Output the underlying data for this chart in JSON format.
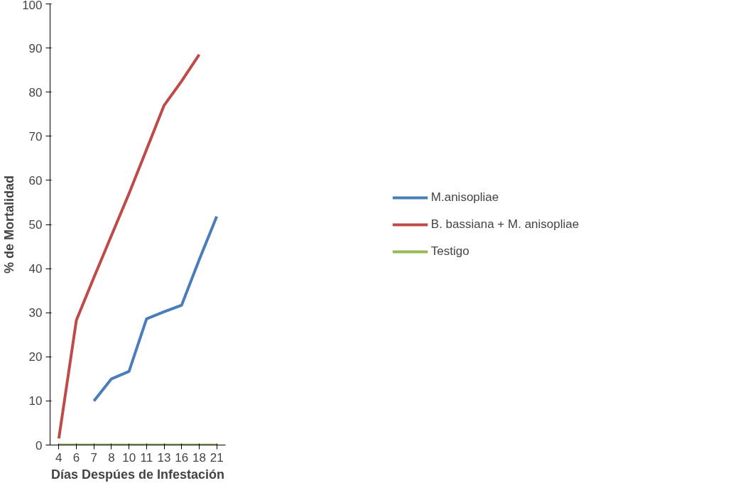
{
  "chart_data": {
    "type": "line",
    "xlabel": "Días Despúes de Infestación",
    "ylabel": "% de Mortalidad",
    "categories": [
      "4",
      "6",
      "7",
      "8",
      "10",
      "11",
      "13",
      "16",
      "18",
      "21"
    ],
    "series": [
      {
        "name": "M.anisopliae",
        "color": "#4a7ebb",
        "values": [
          null,
          null,
          10,
          15,
          16.7,
          28.6,
          30.2,
          31.7,
          42,
          51.8
        ]
      },
      {
        "name": "B. bassiana + M. anisopliae",
        "color": "#be4b48",
        "values": [
          1.5,
          28.3,
          38,
          47.5,
          57,
          67,
          77,
          82.5,
          88.5,
          null
        ]
      },
      {
        "name": "Testigo",
        "color": "#98b954",
        "values": [
          0,
          0,
          0,
          0,
          0,
          0,
          0,
          0,
          0,
          0
        ]
      }
    ],
    "ylim": [
      0,
      100
    ],
    "yticks": [
      0,
      10,
      20,
      30,
      40,
      50,
      60,
      70,
      80,
      90,
      100
    ],
    "grid": false,
    "legend": "right",
    "marker": "none",
    "line_style": "solid"
  }
}
